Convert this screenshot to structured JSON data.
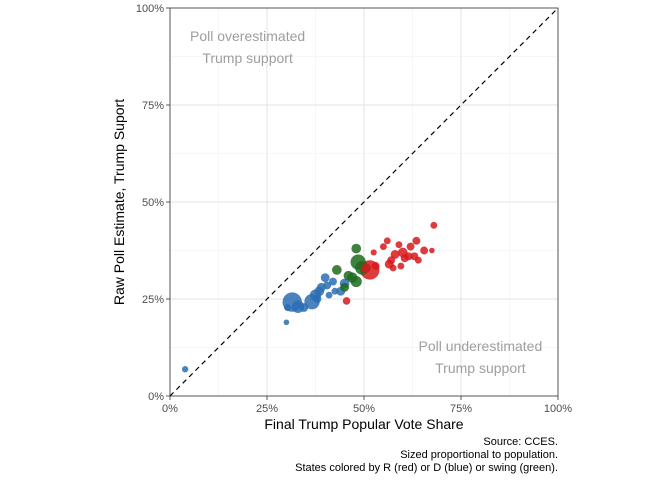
{
  "chart_data": {
    "type": "scatter",
    "xlabel": "Final Trump Popular Vote Share",
    "ylabel": "Raw Poll Estimate, Trump Suport",
    "xlim": [
      0,
      100
    ],
    "ylim": [
      0,
      100
    ],
    "x_ticks": [
      {
        "value": 0,
        "label": "0%"
      },
      {
        "value": 25,
        "label": "25%"
      },
      {
        "value": 50,
        "label": "50%"
      },
      {
        "value": 75,
        "label": "75%"
      },
      {
        "value": 100,
        "label": "100%"
      }
    ],
    "y_ticks": [
      {
        "value": 0,
        "label": "0%"
      },
      {
        "value": 25,
        "label": "25%"
      },
      {
        "value": 50,
        "label": "50%"
      },
      {
        "value": 75,
        "label": "75%"
      },
      {
        "value": 100,
        "label": "100%"
      }
    ],
    "grid": true,
    "reference_line": {
      "from": [
        0,
        0
      ],
      "to": [
        100,
        100
      ],
      "style": "dashed"
    },
    "annotations": [
      {
        "lines": [
          "Poll overestimated",
          "Trump support"
        ],
        "x": 20,
        "y": 90
      },
      {
        "lines": [
          "Poll underestimated",
          "Trump support"
        ],
        "x": 80,
        "y": 10
      }
    ],
    "caption": [
      "Source: CCES.",
      "Sized proportional to population.",
      "States colored by R (red) or D (blue) or swing (green)."
    ],
    "colors": {
      "R": "#d7191c",
      "D": "#2c6db3",
      "swing": "#1f6b1f"
    },
    "points": [
      {
        "x": 3.9,
        "y": 6.9,
        "group": "D",
        "size": 1.3
      },
      {
        "x": 30.0,
        "y": 19.0,
        "group": "D",
        "size": 1.0
      },
      {
        "x": 30.3,
        "y": 22.8,
        "group": "D",
        "size": 1.6
      },
      {
        "x": 31.5,
        "y": 24.2,
        "group": "D",
        "size": 12
      },
      {
        "x": 33.0,
        "y": 23.0,
        "group": "D",
        "size": 5
      },
      {
        "x": 34.5,
        "y": 22.8,
        "group": "D",
        "size": 2.5
      },
      {
        "x": 36.6,
        "y": 24.3,
        "group": "D",
        "size": 7.5
      },
      {
        "x": 37.5,
        "y": 26.0,
        "group": "D",
        "size": 4
      },
      {
        "x": 38.0,
        "y": 25.0,
        "group": "D",
        "size": 2
      },
      {
        "x": 38.5,
        "y": 27.0,
        "group": "D",
        "size": 3
      },
      {
        "x": 39.0,
        "y": 28.0,
        "group": "D",
        "size": 2.5
      },
      {
        "x": 40.0,
        "y": 30.5,
        "group": "D",
        "size": 2.5
      },
      {
        "x": 40.5,
        "y": 28.5,
        "group": "D",
        "size": 2
      },
      {
        "x": 41.0,
        "y": 26.0,
        "group": "D",
        "size": 1.5
      },
      {
        "x": 42.0,
        "y": 29.5,
        "group": "D",
        "size": 2
      },
      {
        "x": 42.5,
        "y": 27.0,
        "group": "D",
        "size": 1.5
      },
      {
        "x": 44.0,
        "y": 27.0,
        "group": "D",
        "size": 2.5
      },
      {
        "x": 45.0,
        "y": 29.0,
        "group": "D",
        "size": 3
      },
      {
        "x": 43.0,
        "y": 32.5,
        "group": "swing",
        "size": 3
      },
      {
        "x": 45.0,
        "y": 28.0,
        "group": "swing",
        "size": 2.5
      },
      {
        "x": 46.0,
        "y": 31.0,
        "group": "swing",
        "size": 3
      },
      {
        "x": 47.0,
        "y": 30.5,
        "group": "swing",
        "size": 3.5
      },
      {
        "x": 48.0,
        "y": 29.5,
        "group": "swing",
        "size": 4
      },
      {
        "x": 48.0,
        "y": 38.0,
        "group": "swing",
        "size": 3
      },
      {
        "x": 48.5,
        "y": 34.5,
        "group": "swing",
        "size": 7.5
      },
      {
        "x": 49.5,
        "y": 33.0,
        "group": "swing",
        "size": 6
      },
      {
        "x": 45.5,
        "y": 24.5,
        "group": "R",
        "size": 1.8
      },
      {
        "x": 50.5,
        "y": 33.0,
        "group": "R",
        "size": 3
      },
      {
        "x": 51.5,
        "y": 32.5,
        "group": "R",
        "size": 12
      },
      {
        "x": 52.5,
        "y": 37.0,
        "group": "R",
        "size": 1.2
      },
      {
        "x": 53.0,
        "y": 33.5,
        "group": "R",
        "size": 2
      },
      {
        "x": 55.0,
        "y": 38.5,
        "group": "R",
        "size": 1.5
      },
      {
        "x": 56.0,
        "y": 40.0,
        "group": "R",
        "size": 1.5
      },
      {
        "x": 56.5,
        "y": 34.0,
        "group": "R",
        "size": 2.5
      },
      {
        "x": 57.0,
        "y": 35.0,
        "group": "R",
        "size": 2
      },
      {
        "x": 57.5,
        "y": 33.0,
        "group": "R",
        "size": 1.5
      },
      {
        "x": 58.0,
        "y": 36.5,
        "group": "R",
        "size": 2.5
      },
      {
        "x": 59.0,
        "y": 39.0,
        "group": "R",
        "size": 1.5
      },
      {
        "x": 59.5,
        "y": 33.5,
        "group": "R",
        "size": 1.5
      },
      {
        "x": 60.0,
        "y": 37.0,
        "group": "R",
        "size": 3
      },
      {
        "x": 60.5,
        "y": 35.5,
        "group": "R",
        "size": 2
      },
      {
        "x": 61.5,
        "y": 36.0,
        "group": "R",
        "size": 2
      },
      {
        "x": 62.0,
        "y": 38.5,
        "group": "R",
        "size": 2
      },
      {
        "x": 63.0,
        "y": 36.0,
        "group": "R",
        "size": 2
      },
      {
        "x": 63.5,
        "y": 40.0,
        "group": "R",
        "size": 2
      },
      {
        "x": 64.0,
        "y": 35.0,
        "group": "R",
        "size": 1.5
      },
      {
        "x": 65.5,
        "y": 37.5,
        "group": "R",
        "size": 2
      },
      {
        "x": 67.5,
        "y": 37.5,
        "group": "R",
        "size": 1
      },
      {
        "x": 68.0,
        "y": 44.0,
        "group": "R",
        "size": 1.5
      }
    ]
  }
}
